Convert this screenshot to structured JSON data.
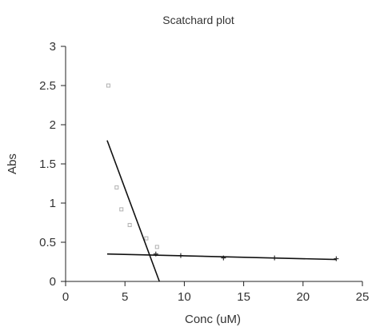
{
  "chart_data": {
    "type": "scatter",
    "title": "Scatchard plot",
    "xlabel": "Conc (uM)",
    "ylabel": "Abs",
    "xlim": [
      0,
      25
    ],
    "ylim": [
      0,
      3
    ],
    "xticks": [
      0,
      5,
      10,
      15,
      20,
      25
    ],
    "yticks": [
      0,
      0.5,
      1,
      1.5,
      2,
      2.5,
      3
    ],
    "grid": false,
    "series": [
      {
        "type": "scatter",
        "marker": "open-square",
        "color": "#b0b0b0",
        "points": [
          {
            "x": 3.6,
            "y": 2.5
          },
          {
            "x": 4.3,
            "y": 1.2
          },
          {
            "x": 4.7,
            "y": 0.92
          },
          {
            "x": 5.4,
            "y": 0.72
          },
          {
            "x": 6.8,
            "y": 0.55
          },
          {
            "x": 7.7,
            "y": 0.44
          }
        ]
      },
      {
        "type": "scatter",
        "marker": "plus",
        "color": "#333333",
        "points": [
          {
            "x": 7.6,
            "y": 0.35
          },
          {
            "x": 9.7,
            "y": 0.33
          },
          {
            "x": 13.3,
            "y": 0.3
          },
          {
            "x": 17.6,
            "y": 0.3
          },
          {
            "x": 22.8,
            "y": 0.29
          }
        ]
      },
      {
        "type": "line",
        "color": "#111111",
        "points": [
          {
            "x": 3.5,
            "y": 1.8
          },
          {
            "x": 7.9,
            "y": 0
          }
        ]
      },
      {
        "type": "line",
        "color": "#111111",
        "points": [
          {
            "x": 3.5,
            "y": 0.35
          },
          {
            "x": 22.8,
            "y": 0.28
          }
        ]
      }
    ]
  }
}
